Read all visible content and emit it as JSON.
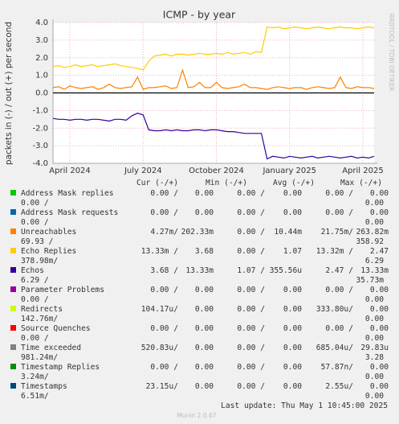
{
  "chart_data": {
    "type": "line",
    "title": "ICMP - by year",
    "y_label": "packets in (-) / out (+) per second",
    "watermark": "RRDTOOL / TOBI OETIKER",
    "categories": [
      null,
      null,
      null,
      "April 2024",
      null,
      null,
      null,
      null,
      null,
      null,
      null,
      null,
      null,
      null,
      null,
      null,
      "July 2024",
      null,
      null,
      null,
      null,
      null,
      null,
      null,
      null,
      null,
      null,
      null,
      null,
      "October 2024",
      null,
      null,
      null,
      null,
      null,
      null,
      null,
      null,
      null,
      null,
      null,
      null,
      "January 2025",
      null,
      null,
      null,
      null,
      null,
      null,
      null,
      null,
      null,
      null,
      null,
      null,
      "April 2025",
      null,
      null
    ],
    "ylim": [
      -4,
      4
    ],
    "yticks": [
      {
        "value": -4,
        "label": "-4.0"
      },
      {
        "value": -3,
        "label": "-3.0"
      },
      {
        "value": -2,
        "label": "-2.0"
      },
      {
        "value": -1,
        "label": "-1.0"
      },
      {
        "value": 0,
        "label": "0.0"
      },
      {
        "value": 1,
        "label": "1.0"
      },
      {
        "value": 2,
        "label": "2.0"
      },
      {
        "value": 3,
        "label": "3.0"
      },
      {
        "value": 4,
        "label": "4.0"
      }
    ],
    "grid": true,
    "legend_header": [
      "Cur (-/+)",
      "Min (-/+)",
      "Avg (-/+)",
      "Max (-/+)"
    ],
    "series": [
      {
        "name": "Address Mask replies",
        "color": "#00cc00",
        "cur": [
          "0.00 /",
          "0.00"
        ],
        "min": [
          "0.00 /",
          "0.00"
        ],
        "avg": [
          "0.00 /",
          "0.00"
        ],
        "max": [
          "0.00 /",
          "0.00"
        ]
      },
      {
        "name": "Address Mask requests",
        "color": "#0066b3",
        "cur": [
          "0.00 /",
          "0.00"
        ],
        "min": [
          "0.00 /",
          "0.00"
        ],
        "avg": [
          "0.00 /",
          "0.00"
        ],
        "max": [
          "0.00 /",
          "0.00"
        ]
      },
      {
        "name": "Unreachables",
        "color": "#ff8000",
        "cur": [
          "4.27m/",
          "202.33m"
        ],
        "min": [
          "0.00 /",
          "10.44m"
        ],
        "avg": [
          "21.75m/",
          "263.82m"
        ],
        "max": [
          "69.93 /",
          "358.92"
        ],
        "values": [
          0.3,
          0.35,
          0.2,
          0.4,
          0.3,
          0.25,
          0.3,
          0.35,
          0.2,
          0.3,
          0.5,
          0.3,
          0.25,
          0.3,
          0.35,
          0.9,
          0.2,
          0.3,
          0.3,
          0.35,
          0.4,
          0.25,
          0.3,
          1.3,
          0.3,
          0.35,
          0.6,
          0.3,
          0.3,
          0.6,
          0.3,
          0.25,
          0.3,
          0.35,
          0.5,
          0.3,
          0.3,
          0.25,
          0.2,
          0.3,
          0.35,
          0.3,
          0.25,
          0.3,
          0.3,
          0.2,
          0.3,
          0.35,
          0.3,
          0.25,
          0.3,
          0.9,
          0.3,
          0.25,
          0.35,
          0.3,
          0.3,
          0.25
        ]
      },
      {
        "name": "Echo Replies",
        "color": "#ffcc00",
        "cur": [
          "13.33m /",
          "3.68"
        ],
        "min": [
          "0.00 /",
          "1.07"
        ],
        "avg": [
          "13.32m /",
          "2.47"
        ],
        "max": [
          "378.98m/",
          "6.29"
        ],
        "values": [
          1.5,
          1.55,
          1.45,
          1.5,
          1.6,
          1.5,
          1.55,
          1.6,
          1.5,
          1.55,
          1.6,
          1.65,
          1.55,
          1.5,
          1.45,
          1.4,
          1.3,
          1.8,
          2.1,
          2.15,
          2.2,
          2.1,
          2.2,
          2.2,
          2.15,
          2.2,
          2.25,
          2.2,
          2.2,
          2.25,
          2.2,
          2.3,
          2.2,
          2.25,
          2.3,
          2.2,
          2.35,
          2.3,
          3.75,
          3.7,
          3.75,
          3.65,
          3.7,
          3.75,
          3.7,
          3.65,
          3.7,
          3.75,
          3.7,
          3.65,
          3.7,
          3.75,
          3.7,
          3.7,
          3.65,
          3.7,
          3.75,
          3.7
        ]
      },
      {
        "name": "Echos",
        "color": "#330099",
        "cur": [
          "3.68 /",
          "13.33m"
        ],
        "min": [
          "1.07 /",
          "355.56u"
        ],
        "avg": [
          "2.47 /",
          "13.33m"
        ],
        "max": [
          "6.29 /",
          "35.73m"
        ],
        "values": [
          -1.45,
          -1.5,
          -1.5,
          -1.55,
          -1.5,
          -1.5,
          -1.55,
          -1.5,
          -1.5,
          -1.55,
          -1.6,
          -1.5,
          -1.5,
          -1.55,
          -1.3,
          -1.15,
          -1.25,
          -2.1,
          -2.15,
          -2.15,
          -2.1,
          -2.15,
          -2.1,
          -2.15,
          -2.15,
          -2.1,
          -2.1,
          -2.15,
          -2.1,
          -2.1,
          -2.15,
          -2.2,
          -2.2,
          -2.25,
          -2.3,
          -2.3,
          -2.3,
          -2.3,
          -3.75,
          -3.6,
          -3.65,
          -3.7,
          -3.6,
          -3.65,
          -3.7,
          -3.65,
          -3.6,
          -3.7,
          -3.65,
          -3.6,
          -3.65,
          -3.7,
          -3.65,
          -3.6,
          -3.7,
          -3.65,
          -3.7,
          -3.6
        ]
      },
      {
        "name": "Parameter Problems",
        "color": "#990099",
        "cur": [
          "0.00 /",
          "0.00"
        ],
        "min": [
          "0.00 /",
          "0.00"
        ],
        "avg": [
          "0.00 /",
          "0.00"
        ],
        "max": [
          "0.00 /",
          "0.00"
        ]
      },
      {
        "name": "Redirects",
        "color": "#ccff00",
        "cur": [
          "104.17u/",
          "0.00"
        ],
        "min": [
          "0.00 /",
          "0.00"
        ],
        "avg": [
          "333.80u/",
          "0.00"
        ],
        "max": [
          "142.76m/",
          "0.00"
        ]
      },
      {
        "name": "Source Quenches",
        "color": "#ff0000",
        "cur": [
          "0.00 /",
          "0.00"
        ],
        "min": [
          "0.00 /",
          "0.00"
        ],
        "avg": [
          "0.00 /",
          "0.00"
        ],
        "max": [
          "0.00 /",
          "0.00"
        ]
      },
      {
        "name": "Time exceeded",
        "color": "#808080",
        "cur": [
          "520.83u/",
          "0.00"
        ],
        "min": [
          "0.00 /",
          "0.00"
        ],
        "avg": [
          "685.04u/",
          "29.83u"
        ],
        "max": [
          "981.24m/",
          "3.28"
        ]
      },
      {
        "name": "Timestamp Replies",
        "color": "#008f00",
        "cur": [
          "0.00 /",
          "0.00"
        ],
        "min": [
          "0.00 /",
          "0.00"
        ],
        "avg": [
          "57.87n/",
          "0.00"
        ],
        "max": [
          "3.24m/",
          "0.00"
        ]
      },
      {
        "name": "Timestamps",
        "color": "#00487d",
        "cur": [
          "23.15u/",
          "0.00"
        ],
        "min": [
          "0.00 /",
          "0.00"
        ],
        "avg": [
          "2.55u/",
          "0.00"
        ],
        "max": [
          "6.51m/",
          "0.00"
        ]
      }
    ],
    "last_update": "Last update: Thu May  1 10:45:00 2025",
    "version": "Munin 2.0.67"
  }
}
